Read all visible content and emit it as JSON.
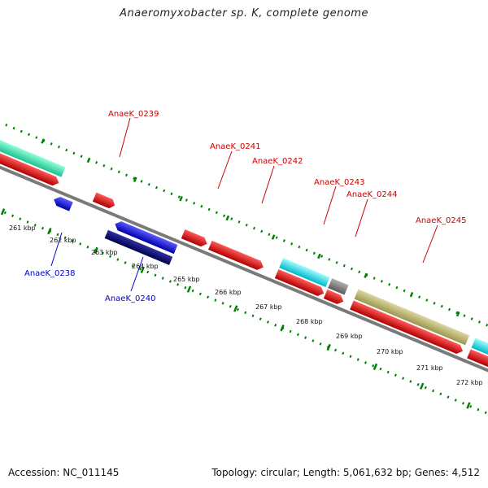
{
  "title": "Anaeromyxobacter sp. K, complete genome",
  "footer": {
    "accession": "Accession: NC_011145",
    "summary": "Topology: circular; Length: 5,061,632 bp; Genes: 4,512"
  },
  "axis": {
    "ticks": [
      "261 kbp",
      "262 kbp",
      "263 kbp",
      "264 kbp",
      "265 kbp",
      "266 kbp",
      "267 kbp",
      "268 kbp",
      "269 kbp",
      "270 kbp",
      "271 kbp",
      "272 kbp"
    ]
  },
  "genes": {
    "forward_labels": [
      "AnaeK_0239",
      "AnaeK_0241",
      "AnaeK_0242",
      "AnaeK_0243",
      "AnaeK_0244",
      "AnaeK_0245"
    ],
    "reverse_labels": [
      "AnaeK_0238",
      "AnaeK_0240"
    ]
  },
  "colors": {
    "cds": "#ff0000",
    "forward_gene": "#ff0000",
    "reverse_gene": "#0000ff",
    "reverse_cds": "#0000cd",
    "dark_cds": "#000080",
    "rna_teal": "#40e0b0",
    "rna_cyan": "#00e5ee",
    "misc_grey": "#888888",
    "olive_feature": "#bdb76b",
    "backbone": "#888888",
    "tick_green": "#008000",
    "label_forward": "#cc0000",
    "label_reverse": "#0000cc"
  }
}
